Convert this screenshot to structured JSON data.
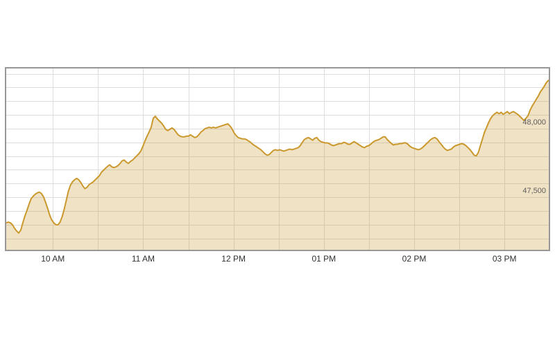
{
  "page": {
    "background": "#ffffff"
  },
  "chart_data": {
    "type": "area",
    "title": "",
    "xlabel": "",
    "ylabel": "",
    "legend": "none",
    "grid": true,
    "x_axis": {
      "unit": "time-of-day",
      "domain_minutes": [
        569,
        929.4
      ],
      "ticks": [
        {
          "minute": 600,
          "label": "10 AM"
        },
        {
          "minute": 660,
          "label": "11 AM"
        },
        {
          "minute": 720,
          "label": "12 PM"
        },
        {
          "minute": 780,
          "label": "01 PM"
        },
        {
          "minute": 840,
          "label": "02 PM"
        },
        {
          "minute": 900,
          "label": "03 PM"
        }
      ],
      "gridline_minutes": [
        600,
        630,
        660,
        690,
        720,
        750,
        780,
        810,
        840,
        870,
        900
      ]
    },
    "y_axis": {
      "domain": [
        47117,
        48438
      ],
      "gridline_values": [
        47200,
        47300,
        47400,
        47500,
        47600,
        47700,
        47800,
        47900,
        48000,
        48100,
        48200,
        48300,
        48400
      ],
      "labels": [
        {
          "value": 48000,
          "label": "48,000"
        },
        {
          "value": 47500,
          "label": "47,500"
        }
      ]
    },
    "series": [
      {
        "name": "index",
        "color": "#CA982C",
        "fill_color": "rgba(202,152,44,0.28)",
        "line_width": 2,
        "start_minute": 569,
        "end_minute": 929.4,
        "values": [
          47313,
          47318,
          47313,
          47299,
          47274,
          47254,
          47239,
          47259,
          47313,
          47363,
          47403,
          47448,
          47488,
          47507,
          47522,
          47532,
          47537,
          47527,
          47503,
          47463,
          47418,
          47368,
          47333,
          47313,
          47299,
          47299,
          47318,
          47358,
          47413,
          47478,
          47542,
          47587,
          47612,
          47627,
          47637,
          47627,
          47607,
          47582,
          47562,
          47572,
          47592,
          47602,
          47612,
          47627,
          47642,
          47657,
          47682,
          47697,
          47712,
          47726,
          47736,
          47721,
          47716,
          47721,
          47731,
          47746,
          47766,
          47771,
          47756,
          47746,
          47761,
          47771,
          47786,
          47801,
          47816,
          47836,
          47871,
          47910,
          47945,
          47975,
          48010,
          48075,
          48090,
          48070,
          48055,
          48040,
          48020,
          47995,
          47985,
          47995,
          48005,
          47995,
          47975,
          47955,
          47945,
          47940,
          47940,
          47945,
          47945,
          47955,
          47945,
          47935,
          47940,
          47955,
          47975,
          47985,
          48000,
          48005,
          48010,
          48005,
          48010,
          48005,
          48010,
          48015,
          48020,
          48025,
          48030,
          48035,
          48020,
          48000,
          47970,
          47950,
          47935,
          47930,
          47925,
          47925,
          47920,
          47910,
          47900,
          47886,
          47876,
          47866,
          47856,
          47846,
          47831,
          47816,
          47806,
          47811,
          47826,
          47841,
          47846,
          47841,
          47846,
          47841,
          47836,
          47841,
          47846,
          47851,
          47846,
          47851,
          47856,
          47861,
          47876,
          47900,
          47920,
          47930,
          47935,
          47925,
          47915,
          47930,
          47935,
          47915,
          47905,
          47900,
          47896,
          47896,
          47891,
          47881,
          47876,
          47881,
          47886,
          47891,
          47891,
          47900,
          47896,
          47886,
          47886,
          47896,
          47905,
          47896,
          47886,
          47876,
          47866,
          47861,
          47871,
          47876,
          47886,
          47900,
          47910,
          47915,
          47920,
          47930,
          47940,
          47940,
          47920,
          47905,
          47891,
          47881,
          47886,
          47886,
          47891,
          47891,
          47896,
          47896,
          47886,
          47871,
          47861,
          47856,
          47851,
          47846,
          47851,
          47861,
          47876,
          47891,
          47905,
          47920,
          47930,
          47935,
          47925,
          47905,
          47886,
          47866,
          47851,
          47841,
          47846,
          47851,
          47866,
          47876,
          47881,
          47886,
          47891,
          47886,
          47876,
          47861,
          47846,
          47826,
          47806,
          47801,
          47826,
          47876,
          47925,
          47975,
          48010,
          48045,
          48075,
          48095,
          48109,
          48119,
          48109,
          48119,
          48104,
          48114,
          48124,
          48109,
          48119,
          48124,
          48114,
          48104,
          48090,
          48075,
          48060,
          48075,
          48095,
          48134,
          48164,
          48189,
          48214,
          48239,
          48269,
          48289,
          48313,
          48338,
          48353
        ]
      }
    ],
    "layout": {
      "plot_border_color": "#979797",
      "grid_color": "#dddddd",
      "x_label_color": "#2f2f2f",
      "y_label_color": "#5e5e5e",
      "background_color": "#ffffff",
      "y_labels_inside_right": true
    }
  }
}
